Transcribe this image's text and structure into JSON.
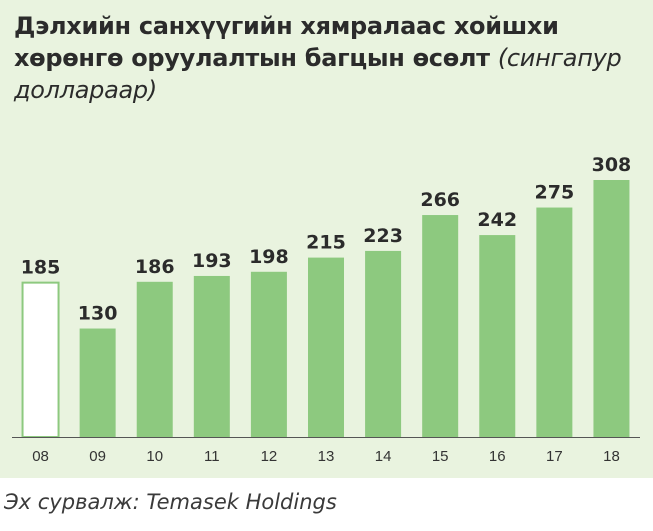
{
  "header": {
    "title": "Дэлхийн санхүүгийн хямралаас хойшхи хөрөнгө оруулалтын багцын өсөлт",
    "unit": "(сингапур доллараар)"
  },
  "footer": {
    "source": "Эх сурвалж: Temasek Holdings"
  },
  "colors": {
    "bar_fill": "#8dc97f",
    "outline_bar_stroke": "#8dc97f",
    "panel_background": "#e9f3df",
    "axis": "#555555"
  },
  "chart_data": {
    "type": "bar",
    "categories": [
      "08",
      "09",
      "10",
      "11",
      "12",
      "13",
      "14",
      "15",
      "16",
      "17",
      "18"
    ],
    "values": [
      185,
      130,
      186,
      193,
      198,
      215,
      223,
      266,
      242,
      275,
      308
    ],
    "outlined_categories": [
      "08"
    ],
    "ylim": [
      0,
      308
    ],
    "grid": false,
    "legend": "none"
  }
}
